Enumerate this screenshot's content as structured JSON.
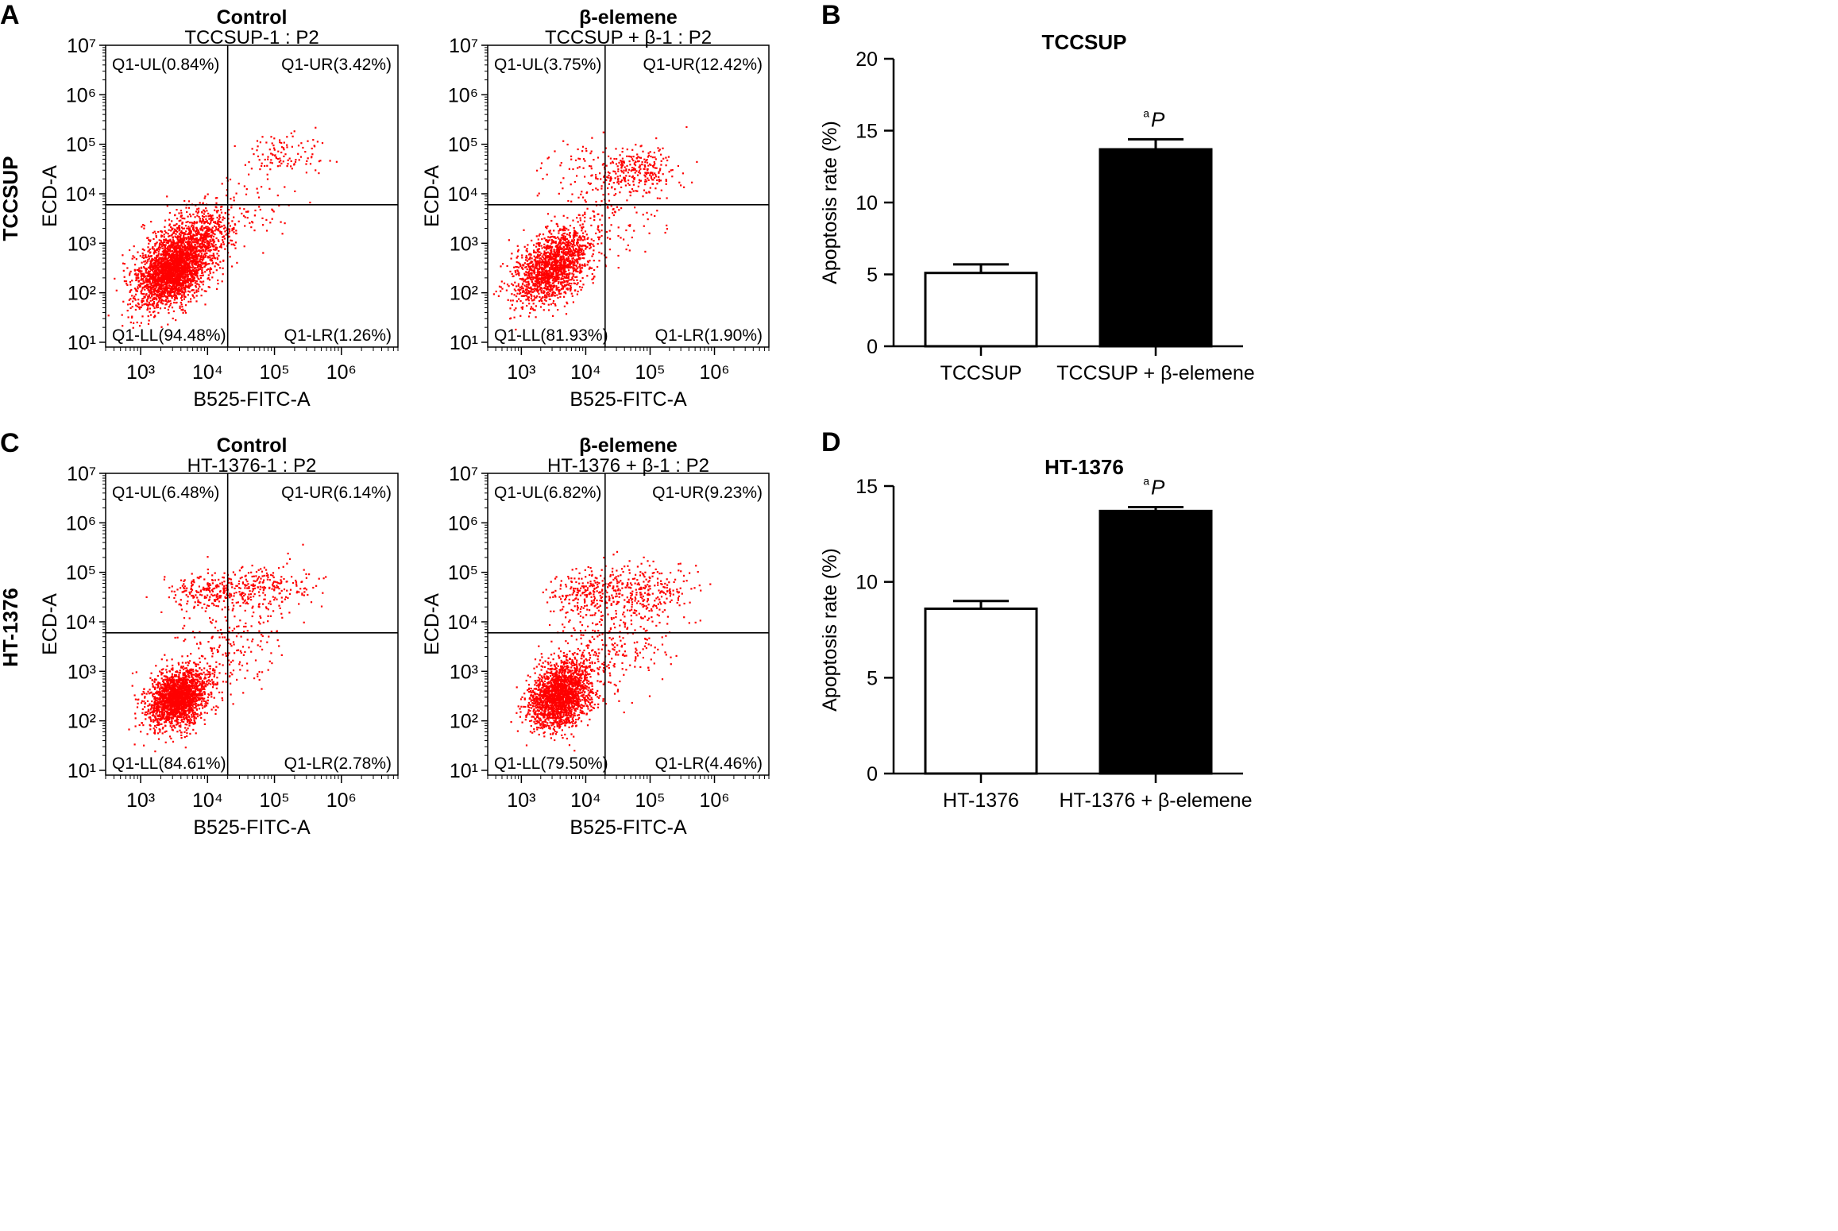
{
  "chart_data": [
    {
      "type": "scatter",
      "panel_letter": "A",
      "row_label": "TCCSUP",
      "condition": "Control",
      "title": "TCCSUP-1 : P2",
      "xlabel": "B525-FITC-A",
      "ylabel": "ECD-A",
      "x_scale": "log",
      "y_scale": "log",
      "xlim": [
        300,
        7000000
      ],
      "ylim": [
        8,
        10000000
      ],
      "gate": {
        "x": 20000,
        "y": 6000
      },
      "quadrants": {
        "UL": "Q1-UL(0.84%)",
        "UR": "Q1-UR(3.42%)",
        "LL": "Q1-LL(94.48%)",
        "LR": "Q1-LR(1.26%)"
      },
      "clusters": [
        {
          "x": 3000,
          "y": 300,
          "n": 2600,
          "sx": 0.28,
          "sy": 0.38,
          "rho": 0.45
        },
        {
          "x": 7000,
          "y": 1500,
          "n": 500,
          "sx": 0.3,
          "sy": 0.3,
          "rho": 0.3
        },
        {
          "x": 150000,
          "y": 60000,
          "n": 110,
          "sx": 0.3,
          "sy": 0.22,
          "rho": 0.1
        },
        {
          "x": 30000,
          "y": 4000,
          "n": 90,
          "sx": 0.45,
          "sy": 0.4,
          "rho": 0.2
        }
      ]
    },
    {
      "type": "scatter",
      "panel_letter": "",
      "row_label": "",
      "condition": "β-elemene",
      "title": "TCCSUP + β-1 : P2",
      "xlabel": "B525-FITC-A",
      "ylabel": "ECD-A",
      "x_scale": "log",
      "y_scale": "log",
      "xlim": [
        300,
        7000000
      ],
      "ylim": [
        8,
        10000000
      ],
      "gate": {
        "x": 20000,
        "y": 6000
      },
      "quadrants": {
        "UL": "Q1-UL(3.75%)",
        "UR": "Q1-UR(12.42%)",
        "LL": "Q1-LL(81.93%)",
        "LR": "Q1-LR(1.90%)"
      },
      "clusters": [
        {
          "x": 3000,
          "y": 350,
          "n": 1600,
          "sx": 0.3,
          "sy": 0.38,
          "rho": 0.45
        },
        {
          "x": 60000,
          "y": 30000,
          "n": 280,
          "sx": 0.3,
          "sy": 0.25,
          "rho": 0.1
        },
        {
          "x": 8000,
          "y": 25000,
          "n": 70,
          "sx": 0.35,
          "sy": 0.4,
          "rho": 0.0
        },
        {
          "x": 25000,
          "y": 3000,
          "n": 100,
          "sx": 0.45,
          "sy": 0.45,
          "rho": 0.2
        }
      ]
    },
    {
      "type": "scatter",
      "panel_letter": "C",
      "row_label": "HT-1376",
      "condition": "Control",
      "title": "HT-1376-1 : P2",
      "xlabel": "B525-FITC-A",
      "ylabel": "ECD-A",
      "x_scale": "log",
      "y_scale": "log",
      "xlim": [
        300,
        7000000
      ],
      "ylim": [
        8,
        10000000
      ],
      "gate": {
        "x": 20000,
        "y": 6000
      },
      "quadrants": {
        "UL": "Q1-UL(6.48%)",
        "UR": "Q1-UR(6.14%)",
        "LL": "Q1-LL(84.61%)",
        "LR": "Q1-LR(2.78%)"
      },
      "clusters": [
        {
          "x": 3500,
          "y": 300,
          "n": 2000,
          "sx": 0.22,
          "sy": 0.3,
          "rho": 0.3
        },
        {
          "x": 10000,
          "y": 45000,
          "n": 200,
          "sx": 0.3,
          "sy": 0.2,
          "rho": 0.1
        },
        {
          "x": 70000,
          "y": 50000,
          "n": 230,
          "sx": 0.4,
          "sy": 0.25,
          "rho": 0.1
        },
        {
          "x": 20000,
          "y": 3000,
          "n": 200,
          "sx": 0.4,
          "sy": 0.45,
          "rho": 0.2
        }
      ]
    },
    {
      "type": "scatter",
      "panel_letter": "",
      "row_label": "",
      "condition": "β-elemene",
      "title": "HT-1376 + β-1 : P2",
      "xlabel": "B525-FITC-A",
      "ylabel": "ECD-A",
      "x_scale": "log",
      "y_scale": "log",
      "xlim": [
        300,
        7000000
      ],
      "ylim": [
        8,
        10000000
      ],
      "gate": {
        "x": 20000,
        "y": 6000
      },
      "quadrants": {
        "UL": "Q1-UL(6.82%)",
        "UR": "Q1-UR(9.23%)",
        "LL": "Q1-LL(79.50%)",
        "LR": "Q1-LR(4.46%)"
      },
      "clusters": [
        {
          "x": 4000,
          "y": 350,
          "n": 2000,
          "sx": 0.24,
          "sy": 0.34,
          "rho": 0.3
        },
        {
          "x": 10000,
          "y": 40000,
          "n": 220,
          "sx": 0.3,
          "sy": 0.25,
          "rho": 0.1
        },
        {
          "x": 70000,
          "y": 40000,
          "n": 300,
          "sx": 0.4,
          "sy": 0.3,
          "rho": 0.1
        },
        {
          "x": 25000,
          "y": 3000,
          "n": 250,
          "sx": 0.45,
          "sy": 0.45,
          "rho": 0.2
        }
      ]
    },
    {
      "type": "bar",
      "panel_letter": "B",
      "title": "TCCSUP",
      "ylabel": "Apoptosis rate (%)",
      "ylim": [
        0,
        20
      ],
      "yticks": [
        0,
        5,
        10,
        15,
        20
      ],
      "categories": [
        "TCCSUP",
        "TCCSUP + β-elemene"
      ],
      "values": [
        5.1,
        13.7
      ],
      "errors": [
        0.6,
        0.7
      ],
      "fills": [
        "#ffffff",
        "#000000"
      ],
      "significance": [
        null,
        "P"
      ],
      "sig_prefix": "a"
    },
    {
      "type": "bar",
      "panel_letter": "D",
      "title": "HT-1376",
      "ylabel": "Apoptosis rate (%)",
      "ylim": [
        0,
        15
      ],
      "yticks": [
        0,
        5,
        10,
        15
      ],
      "categories": [
        "HT-1376",
        "HT-1376 + β-elemene"
      ],
      "values": [
        8.6,
        13.7
      ],
      "errors": [
        0.4,
        0.2
      ],
      "fills": [
        "#ffffff",
        "#000000"
      ],
      "significance": [
        null,
        "P"
      ],
      "sig_prefix": "a"
    }
  ],
  "colors": {
    "dots": "#ff0000",
    "axis": "#000000",
    "gate": "#000000"
  }
}
